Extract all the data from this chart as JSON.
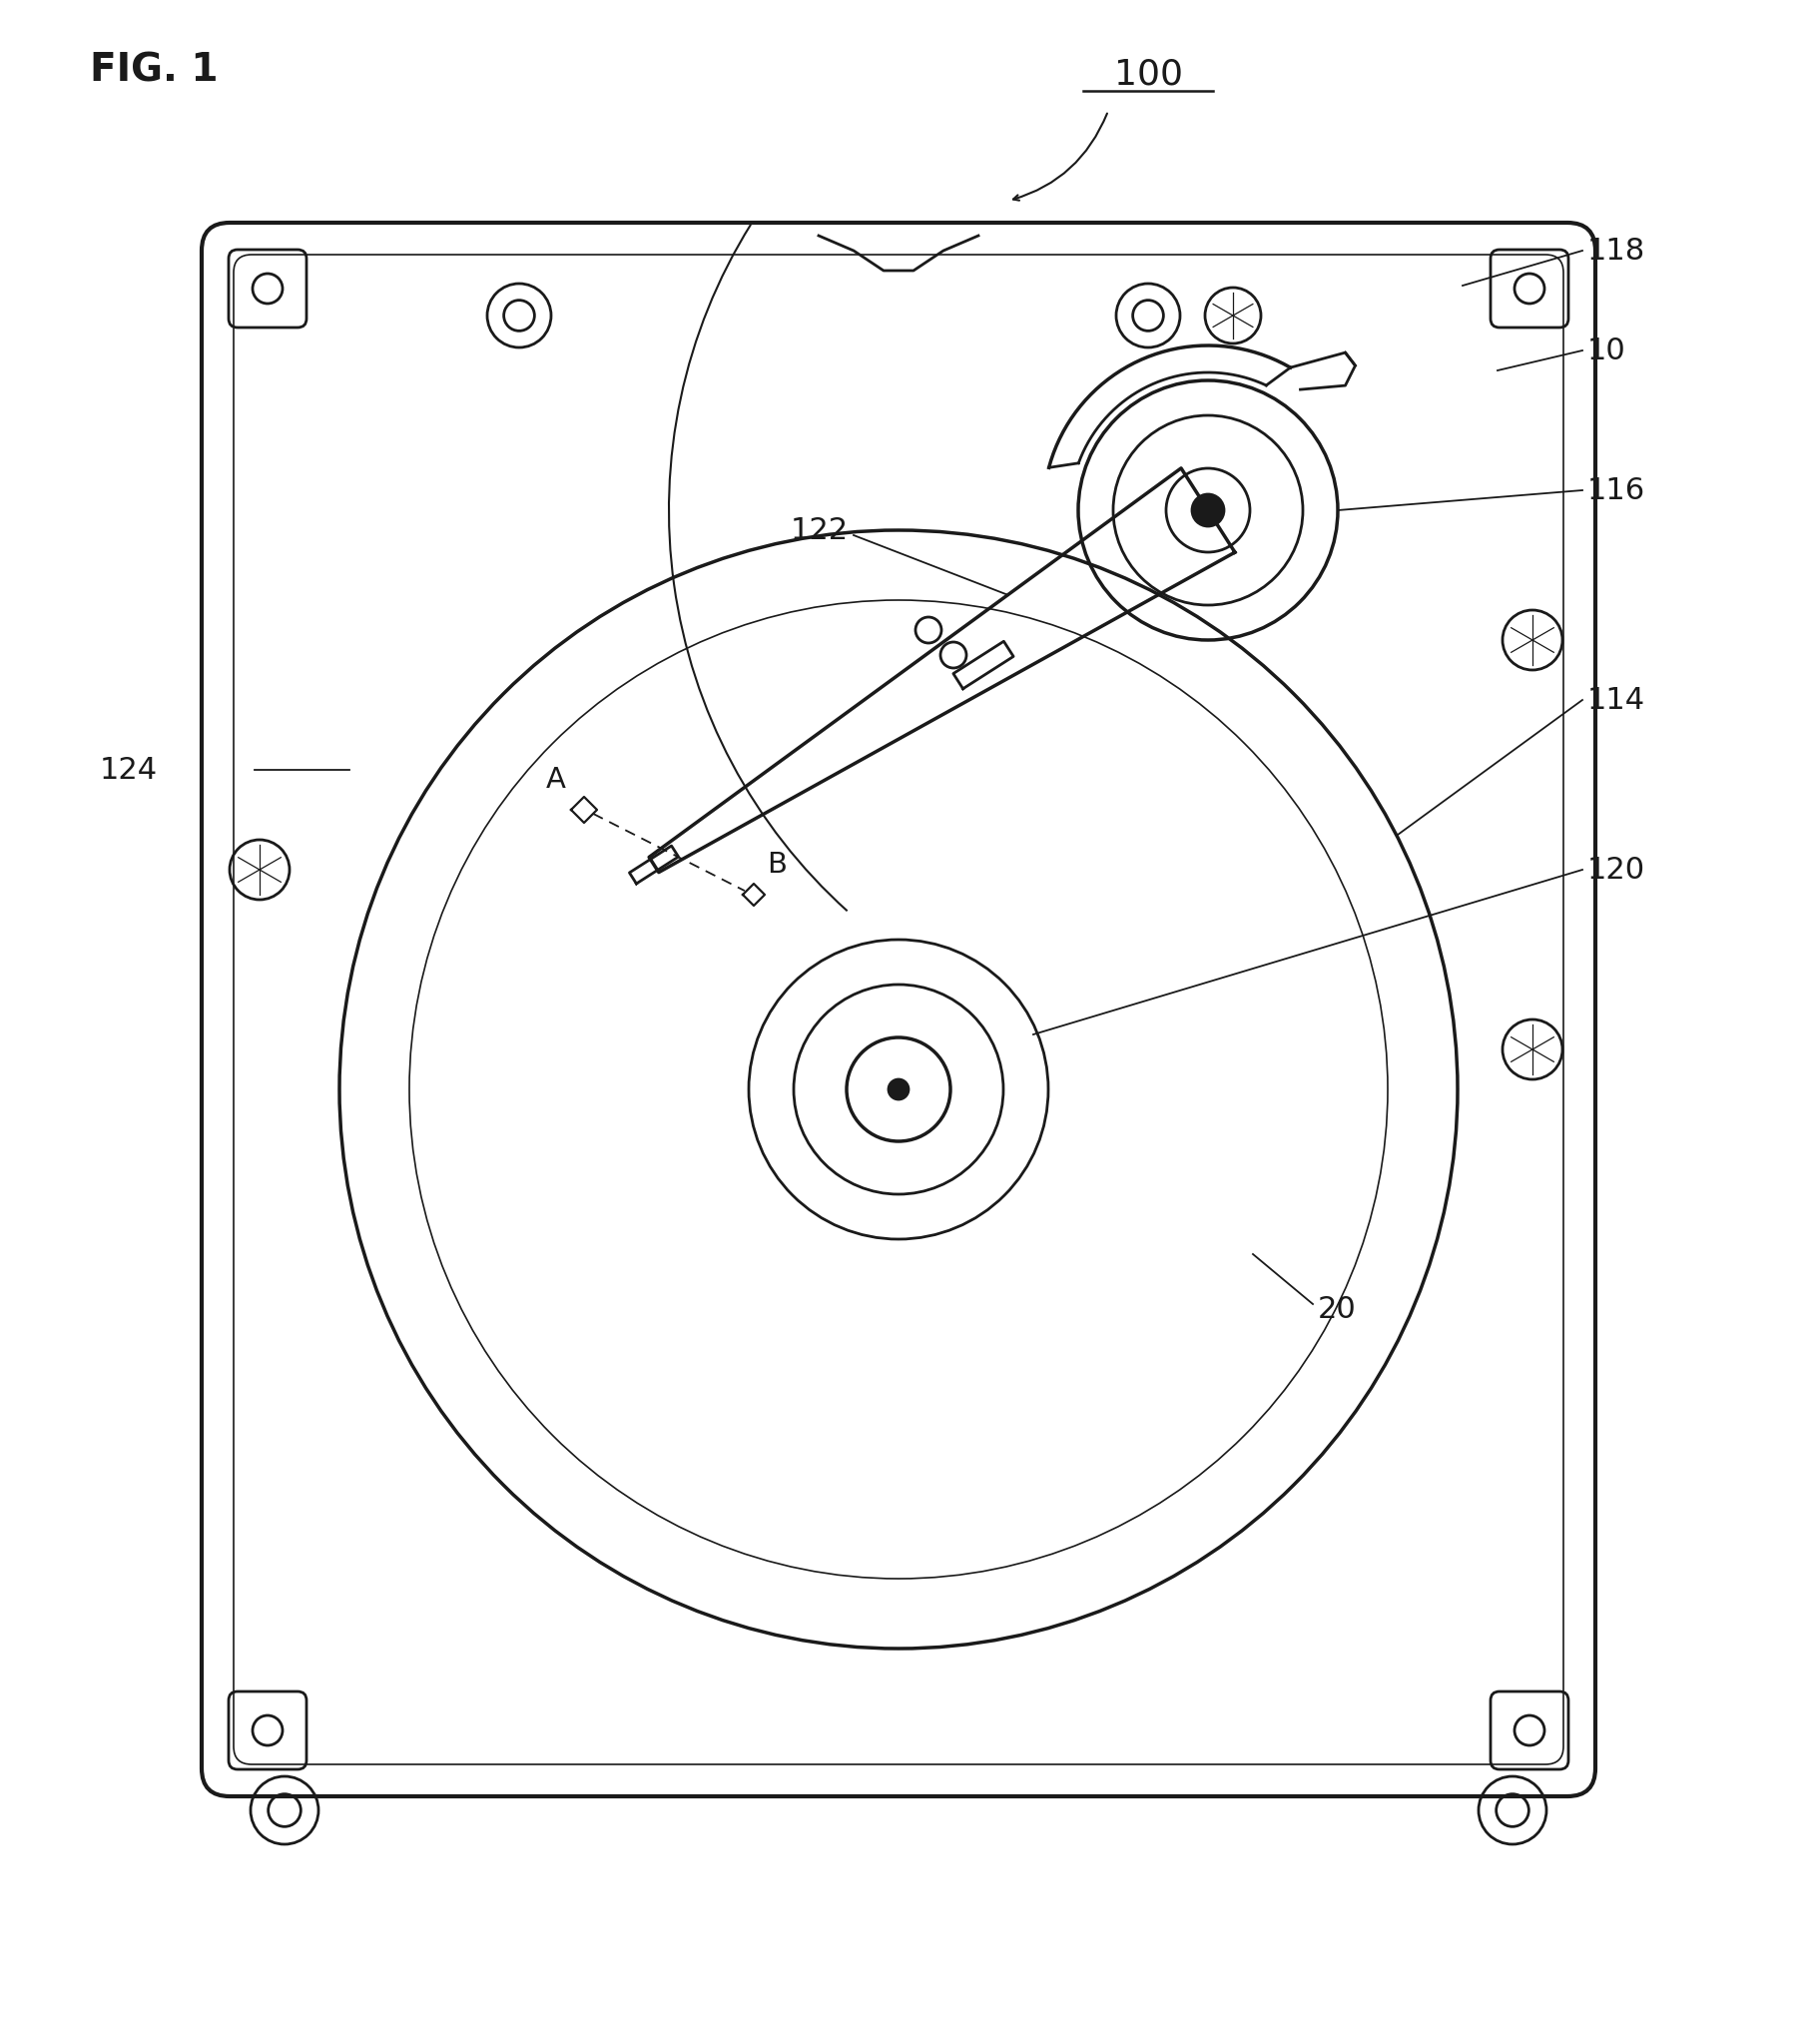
{
  "fig_label": "FIG. 1",
  "label_100": "100",
  "label_10": "10",
  "label_118": "118",
  "label_116": "116",
  "label_122": "122",
  "label_124": "124",
  "label_114": "114",
  "label_120": "120",
  "label_20": "20",
  "label_A": "A",
  "label_B": "B",
  "bg_color": "#ffffff",
  "line_color": "#1a1a1a",
  "line_width": 2.0,
  "thin_line": 1.2,
  "thick_line": 3.0
}
